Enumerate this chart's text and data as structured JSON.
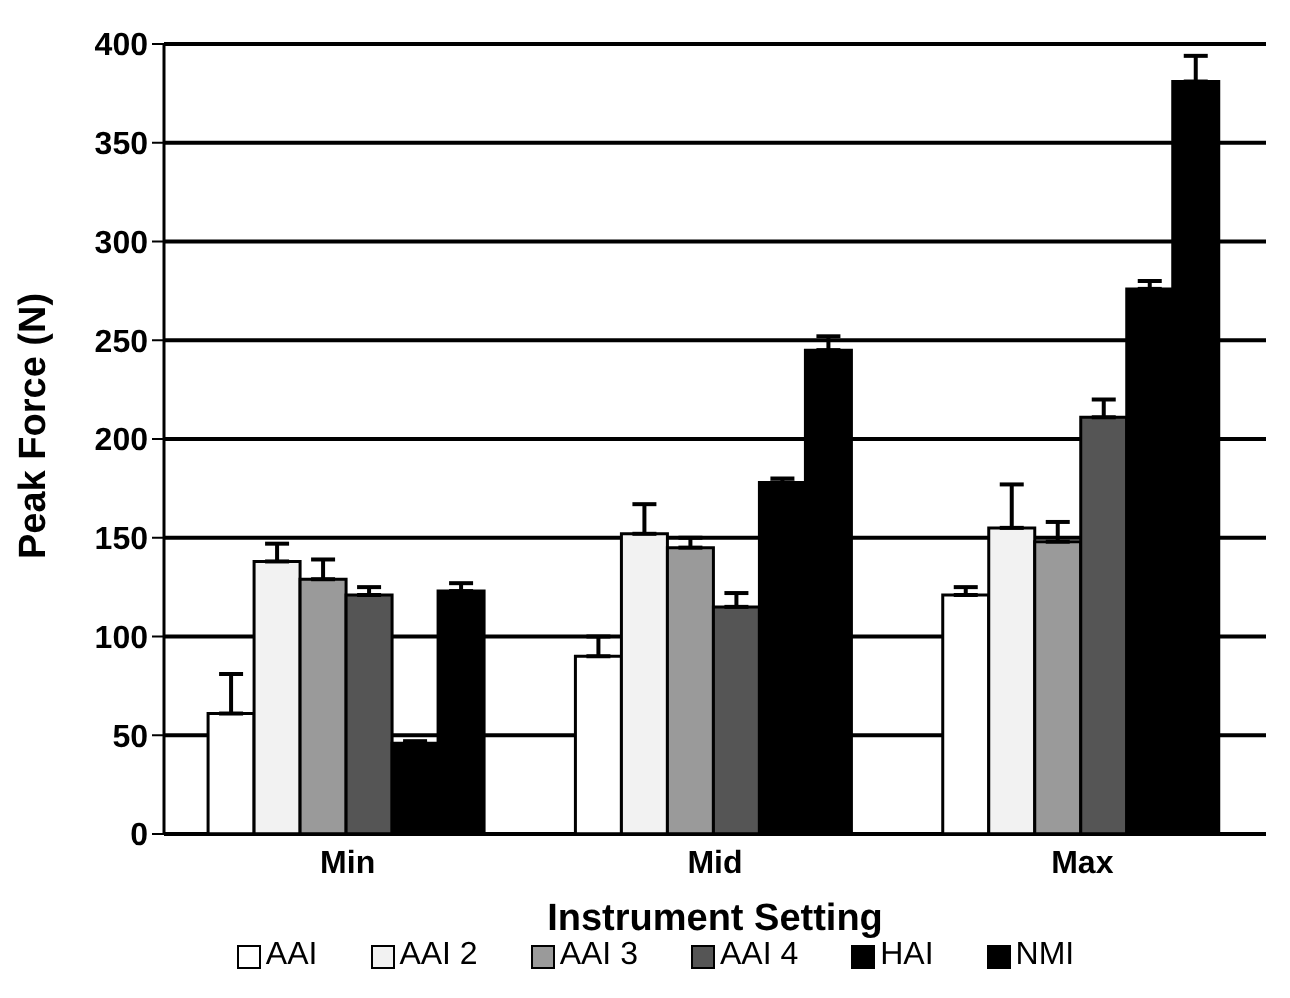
{
  "chart_data": {
    "type": "bar",
    "xlabel": "Instrument Setting",
    "ylabel": "Peak Force (N)",
    "categories": [
      "Min",
      "Mid",
      "Max"
    ],
    "series": [
      {
        "name": "AAI",
        "color": "#ffffff",
        "values": [
          61,
          90,
          121
        ],
        "errors": [
          [
            61,
            81
          ],
          [
            90,
            100
          ],
          [
            121,
            125
          ]
        ]
      },
      {
        "name": "AAI 2",
        "color": "#f2f2f2",
        "values": [
          138,
          152,
          155
        ],
        "errors": [
          [
            138,
            147
          ],
          [
            152,
            167
          ],
          [
            155,
            177
          ]
        ]
      },
      {
        "name": "AAI 3",
        "color": "#9a9a9a",
        "values": [
          129,
          145,
          148
        ],
        "errors": [
          [
            129,
            139
          ],
          [
            145,
            150
          ],
          [
            148,
            158
          ]
        ]
      },
      {
        "name": "AAI 4",
        "color": "#555555",
        "values": [
          121,
          115,
          211
        ],
        "errors": [
          [
            121,
            125
          ],
          [
            115,
            122
          ],
          [
            211,
            220
          ]
        ]
      },
      {
        "name": "HAI",
        "color": "#000000",
        "values": [
          46,
          178,
          276
        ],
        "errors": [
          [
            46,
            47
          ],
          [
            178,
            180
          ],
          [
            276,
            280
          ]
        ]
      },
      {
        "name": "NMI",
        "color": "#000000",
        "values": [
          123,
          245,
          381
        ],
        "errors": [
          [
            123,
            127
          ],
          [
            245,
            252
          ],
          [
            381,
            394
          ]
        ]
      }
    ],
    "ylim": [
      0,
      400
    ],
    "yticks": [
      0,
      50,
      100,
      150,
      200,
      250,
      300,
      350,
      400
    ],
    "grid": "y",
    "legend": "bottom"
  }
}
